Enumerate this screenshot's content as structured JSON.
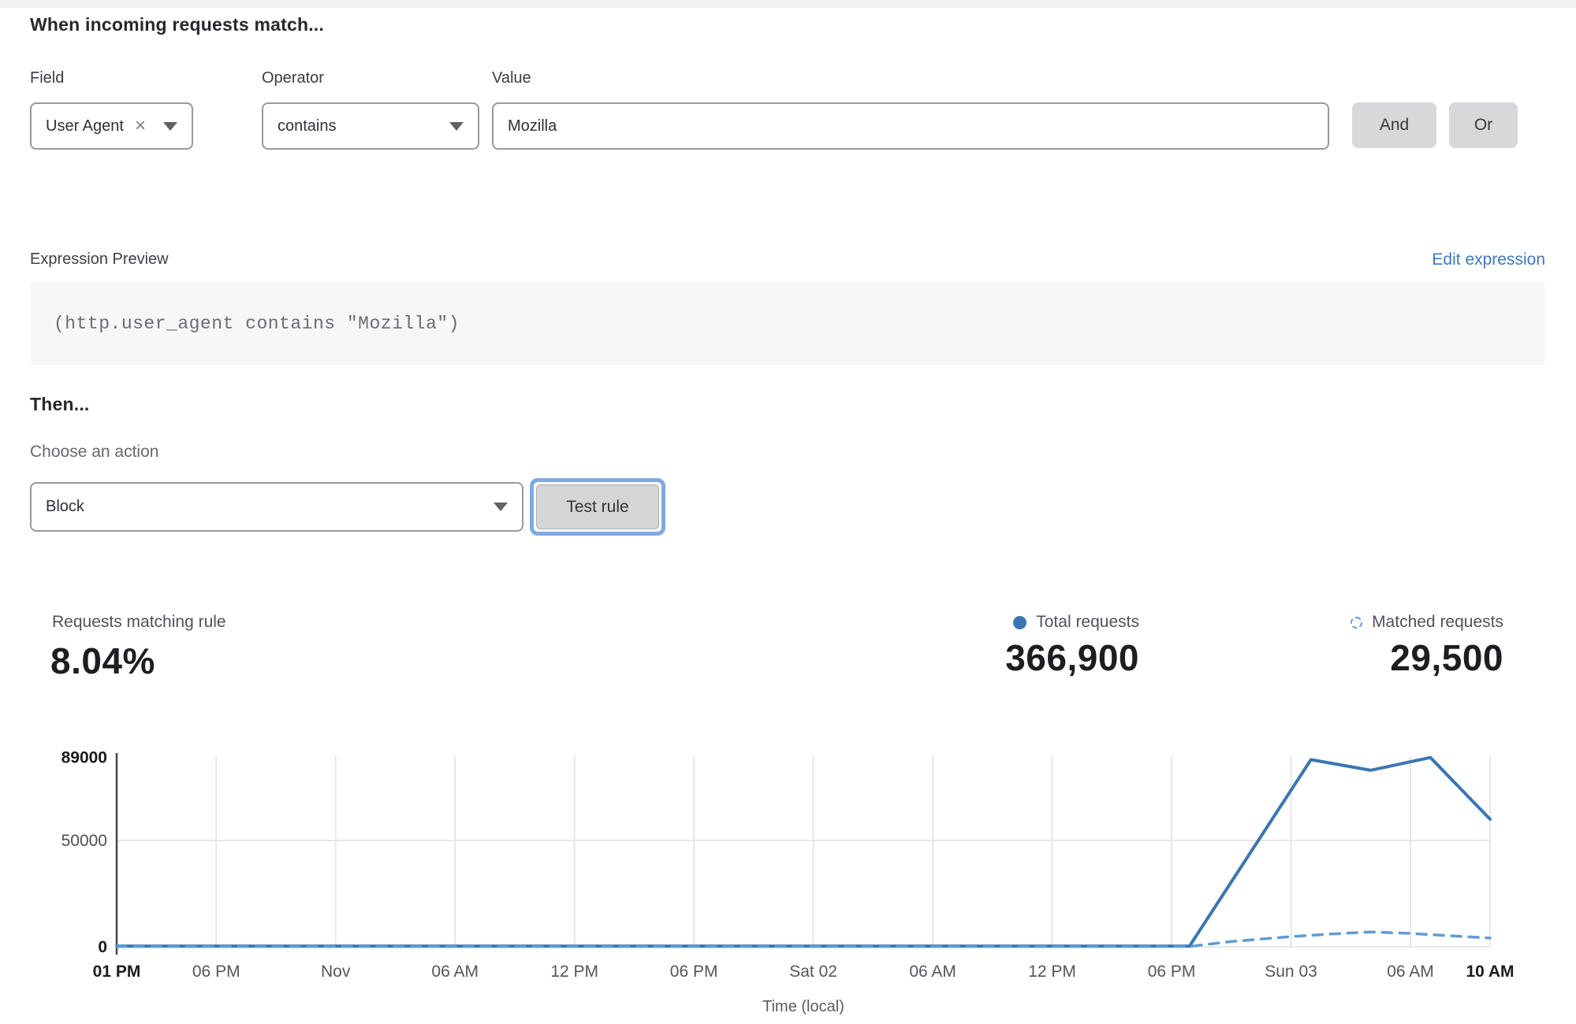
{
  "colors": {
    "accent_line": "#3a76b2",
    "matched_line": "#609bd2",
    "link_blue": "#3d78bb",
    "button_gray": "#d8d8da",
    "focus_ring": "#7fa9e4"
  },
  "match_builder": {
    "heading": "When incoming requests match...",
    "field": {
      "label": "Field",
      "value": "User Agent"
    },
    "operator": {
      "label": "Operator",
      "value": "contains"
    },
    "value": {
      "label": "Value",
      "value": "Mozilla"
    },
    "and_label": "And",
    "or_label": "Or"
  },
  "expression": {
    "label": "Expression Preview",
    "edit_link": "Edit expression",
    "code": "(http.user_agent contains \"Mozilla\")"
  },
  "action": {
    "heading": "Then...",
    "choose_label": "Choose an action",
    "selected": "Block",
    "test_button": "Test rule"
  },
  "stats": {
    "matching_label": "Requests matching rule",
    "matching_value": "8.04%",
    "total": {
      "label": "Total requests",
      "value": "366,900"
    },
    "matched": {
      "label": "Matched requests",
      "value": "29,500"
    }
  },
  "chart_data": {
    "type": "line",
    "title": "",
    "xlabel": "Time (local)",
    "ylabel": "",
    "ylim": [
      0,
      89000
    ],
    "x_domain_hours": [
      0,
      69
    ],
    "grid": true,
    "legend_position": "top-right",
    "yticks": [
      {
        "v": 0,
        "label": "0",
        "bold": true
      },
      {
        "v": 50000,
        "label": "50000",
        "bold": false
      },
      {
        "v": 89000,
        "label": "89000",
        "bold": true
      }
    ],
    "xticks": [
      {
        "t": 0,
        "label": "01 PM",
        "bold": true
      },
      {
        "t": 5,
        "label": "06 PM",
        "bold": false
      },
      {
        "t": 11,
        "label": "Nov",
        "bold": false
      },
      {
        "t": 17,
        "label": "06 AM",
        "bold": false
      },
      {
        "t": 23,
        "label": "12 PM",
        "bold": false
      },
      {
        "t": 29,
        "label": "06 PM",
        "bold": false
      },
      {
        "t": 35,
        "label": "Sat 02",
        "bold": false
      },
      {
        "t": 41,
        "label": "06 AM",
        "bold": false
      },
      {
        "t": 47,
        "label": "12 PM",
        "bold": false
      },
      {
        "t": 53,
        "label": "06 PM",
        "bold": false
      },
      {
        "t": 59,
        "label": "Sun 03",
        "bold": false
      },
      {
        "t": 65,
        "label": "06 AM",
        "bold": false
      },
      {
        "t": 69,
        "label": "10 AM",
        "bold": true
      }
    ],
    "series": [
      {
        "name": "Total requests",
        "style": "solid",
        "color": "#3a76b2",
        "x_hours": [
          0,
          6,
          12,
          18,
          24,
          30,
          36,
          42,
          48,
          53.9,
          60,
          63,
          66,
          69
        ],
        "values": [
          350,
          350,
          350,
          350,
          350,
          350,
          350,
          350,
          350,
          350,
          88000,
          83000,
          89000,
          60000
        ]
      },
      {
        "name": "Matched requests",
        "style": "dashed",
        "color": "#609bd2",
        "x_hours": [
          0,
          10,
          20,
          30,
          40,
          50,
          53.9,
          56,
          59,
          61,
          63,
          65,
          67,
          69
        ],
        "values": [
          150,
          150,
          150,
          150,
          150,
          150,
          200,
          2500,
          4800,
          6000,
          7000,
          6300,
          5200,
          4100
        ]
      }
    ]
  }
}
